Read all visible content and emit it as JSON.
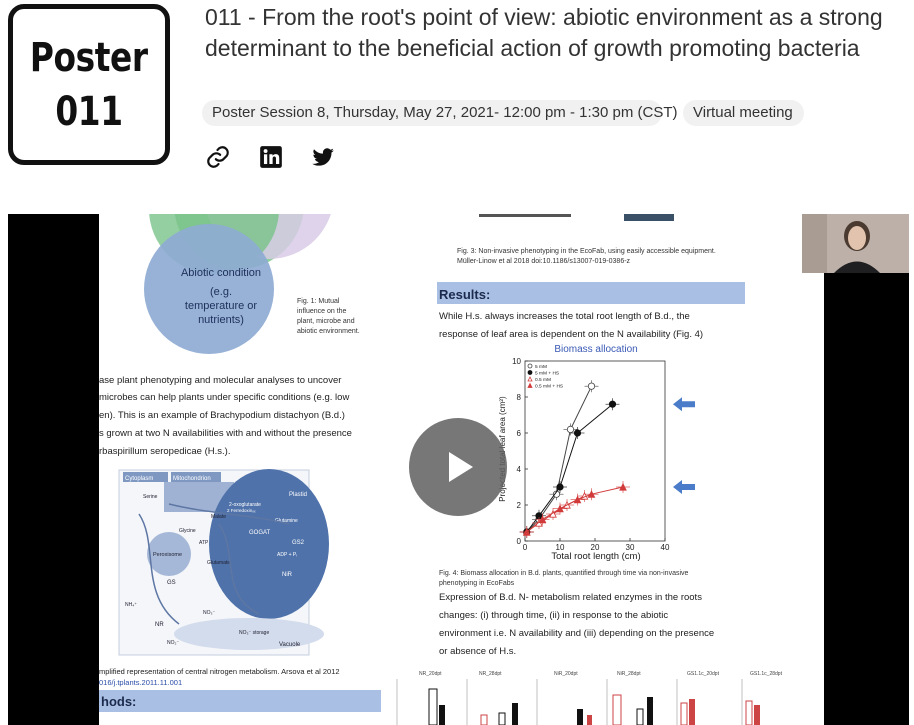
{
  "badge": {
    "line1": "Poster",
    "line2": "011"
  },
  "title": "011 - From the root's point of view: abiotic environment as a strong determinant to the beneficial action of growth promoting bacteria",
  "session": "Poster Session 8, Thursday, May 27, 2021- 12:00 pm - 1:30 pm (CST)",
  "venue": "Virtual meeting",
  "share_icons": [
    "link-icon",
    "linkedin-icon",
    "twitter-icon"
  ],
  "video": {
    "play_icon": "play-icon",
    "slide": {
      "venn_label_1": "Abiotic condition",
      "venn_label_2": "(e.g.",
      "venn_label_3": "temperature or",
      "venn_label_4": "nutrients)",
      "fig1_caption": [
        "Fig. 1: Mutual",
        "influence on the",
        "plant, microbe and",
        "abiotic environment."
      ],
      "intro_lines": [
        "ase plant phenotyping and molecular analyses to uncover",
        "microbes can help plants under specific conditions (e.g. low",
        "en). This is an example of Brachypodium distachyon (B.d.)",
        "s grown at two N availabilities with and without the presence",
        "rbaspirillum seropedicae (H.s.)."
      ],
      "pathway_labels": [
        "Cytoplasm",
        "Mitochondrion",
        "Plastid",
        "Peroxisome",
        "Vacuole",
        "GS",
        "NR",
        "NiR",
        "GOGAT",
        "GS2",
        "Glutamine",
        "Glutamate",
        "Glycine",
        "Serine",
        "Malate",
        "NO₃⁻",
        "NH₄⁺",
        "NO₂⁻",
        "NO₃⁻ storage",
        "ATP",
        "ADP + Pᵢ",
        "2-oxoglutarate",
        "2 Ferredoxinₒₓ"
      ],
      "fig2_caption_1": "mplified representation of central nitrogen metabolism. Arsova et al 2012",
      "fig2_caption_2": "016/j.tplants.2011.11.001",
      "methods_heading": "hods:",
      "fig3_caption_1": "Fig. 3: Non-invasive phenotyping in the EcoFab, using easily accessible equipment.",
      "fig3_caption_2": "Müller-Linow et al 2018 doi:10.1186/s13007-019-0386-z",
      "results_heading": "Results:",
      "results_text": [
        "While H.s. always increases the total root length of B.d., the",
        "response of leaf area is dependent on the N availability (Fig. 4)"
      ],
      "fig4_caption": [
        "Fig. 4: Biomass allocation in B.d. plants, quantified through time via non-invasive",
        "phenotyping in EcoFabs"
      ],
      "expression_text": [
        "Expression of B.d. N- metabolism related enzymes in the roots",
        "changes: (i) through time, (ii) in response to the abiotic",
        "environment i.e. N availability and (iii) depending on the presence",
        "or absence of H.s."
      ],
      "bottom_chart_titles": [
        "NR_20dpt",
        "NR_28dpt",
        "NiR_20dpt",
        "NiR_28dpt",
        "GS1.1c_20dpt",
        "GS1.1c_28dpt"
      ]
    },
    "chart": {
      "title": "Biomass allocation",
      "xlabel": "Total root length (cm)",
      "ylabel": "Projected total leaf area (cm²)",
      "x_ticks": [
        "0",
        "10",
        "20",
        "30",
        "40"
      ],
      "y_ticks": [
        "0",
        "2",
        "4",
        "6",
        "8",
        "10"
      ],
      "xlim": [
        0,
        40
      ],
      "ylim": [
        0,
        10
      ],
      "legend": [
        "5 mM",
        "5 mM + HS",
        "0.5 mM",
        "0.5 mM + HS"
      ],
      "series": [
        {
          "name": "5 mM",
          "color": "#444444",
          "marker": "open-circle",
          "points": [
            [
              0.5,
              0.5
            ],
            [
              4,
              1.2
            ],
            [
              9,
              2.6
            ],
            [
              13,
              6.2
            ],
            [
              19,
              8.6
            ]
          ]
        },
        {
          "name": "5 mM + HS",
          "color": "#111111",
          "marker": "filled-circle",
          "points": [
            [
              0.5,
              0.5
            ],
            [
              4,
              1.4
            ],
            [
              10,
              3.0
            ],
            [
              15,
              6.0
            ],
            [
              25,
              7.6
            ]
          ]
        },
        {
          "name": "0.5 mM",
          "color": "#d23b3b",
          "marker": "open-triangle",
          "points": [
            [
              0.5,
              0.5
            ],
            [
              4,
              1.0
            ],
            [
              8,
              1.5
            ],
            [
              12,
              2.0
            ],
            [
              17,
              2.5
            ]
          ]
        },
        {
          "name": "0.5 mM + HS",
          "color": "#d23b3b",
          "marker": "filled-triangle",
          "points": [
            [
              0.5,
              0.5
            ],
            [
              5,
              1.2
            ],
            [
              10,
              1.8
            ],
            [
              15,
              2.3
            ],
            [
              19,
              2.6
            ],
            [
              28,
              3.0
            ]
          ]
        }
      ]
    }
  }
}
